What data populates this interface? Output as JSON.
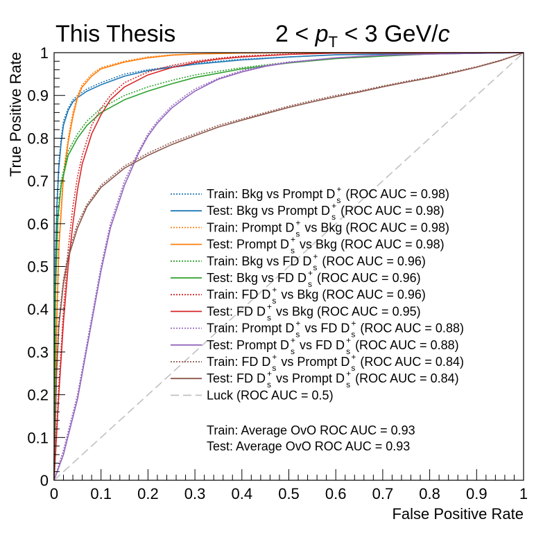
{
  "chart_data": {
    "type": "line",
    "header": {
      "left": "This Thesis",
      "right_prefix": "2 < ",
      "right_var": "p",
      "right_sub": "T",
      "right_mid": " < 3 GeV/",
      "right_unit": "c"
    },
    "xlabel": "False Positive Rate",
    "ylabel": "True Positive Rate",
    "xlim": [
      0,
      1
    ],
    "ylim": [
      0,
      1
    ],
    "xticks": [
      "0",
      "0.1",
      "0.2",
      "0.3",
      "0.4",
      "0.5",
      "0.6",
      "0.7",
      "0.8",
      "0.9",
      "1"
    ],
    "yticks": [
      "0",
      "0.1",
      "0.2",
      "0.3",
      "0.4",
      "0.5",
      "0.6",
      "0.7",
      "0.8",
      "0.9",
      "1"
    ],
    "grid": false,
    "legend_position": "center-right",
    "series": [
      {
        "name": "Train: Bkg vs Prompt D_s^+ (ROC AUC = 0.98)",
        "style": "dotted",
        "color": "#1f77b4",
        "x": [
          0,
          0.003,
          0.006,
          0.01,
          0.015,
          0.02,
          0.03,
          0.04,
          0.05,
          0.07,
          0.1,
          0.15,
          0.2,
          0.3,
          0.4,
          0.5,
          0.6,
          0.8,
          1.0
        ],
        "y": [
          0,
          0.52,
          0.65,
          0.74,
          0.8,
          0.84,
          0.87,
          0.89,
          0.9,
          0.915,
          0.93,
          0.95,
          0.96,
          0.975,
          0.985,
          0.99,
          0.995,
          0.998,
          1.0
        ]
      },
      {
        "name": "Test: Bkg vs Prompt D_s^+ (ROC AUC = 0.98)",
        "style": "solid",
        "color": "#1f77b4",
        "x": [
          0,
          0.003,
          0.006,
          0.01,
          0.015,
          0.02,
          0.03,
          0.04,
          0.05,
          0.07,
          0.1,
          0.15,
          0.2,
          0.3,
          0.4,
          0.5,
          0.6,
          0.8,
          1.0
        ],
        "y": [
          0,
          0.51,
          0.64,
          0.73,
          0.79,
          0.83,
          0.865,
          0.885,
          0.895,
          0.91,
          0.925,
          0.945,
          0.958,
          0.973,
          0.983,
          0.99,
          0.995,
          0.998,
          1.0
        ]
      },
      {
        "name": "Train: Prompt D_s^+ vs Bkg (ROC AUC = 0.98)",
        "style": "dotted",
        "color": "#ff7f0e",
        "x": [
          0,
          0.005,
          0.01,
          0.02,
          0.03,
          0.04,
          0.05,
          0.06,
          0.08,
          0.1,
          0.15,
          0.2,
          0.25,
          0.3,
          0.4,
          0.5,
          1.0
        ],
        "y": [
          0,
          0.35,
          0.55,
          0.72,
          0.8,
          0.86,
          0.9,
          0.925,
          0.95,
          0.965,
          0.98,
          0.99,
          0.995,
          0.997,
          0.999,
          1.0,
          1.0
        ]
      },
      {
        "name": "Test: Prompt D_s^+ vs Bkg (ROC AUC = 0.98)",
        "style": "solid",
        "color": "#ff7f0e",
        "x": [
          0,
          0.005,
          0.01,
          0.02,
          0.03,
          0.04,
          0.05,
          0.06,
          0.08,
          0.1,
          0.15,
          0.2,
          0.25,
          0.3,
          0.4,
          0.5,
          1.0
        ],
        "y": [
          0,
          0.34,
          0.54,
          0.71,
          0.79,
          0.85,
          0.895,
          0.92,
          0.945,
          0.962,
          0.978,
          0.988,
          0.994,
          0.997,
          0.999,
          1.0,
          1.0
        ]
      },
      {
        "name": "Train: Bkg vs FD D_s^+ (ROC AUC = 0.96)",
        "style": "dotted",
        "color": "#2ca02c",
        "x": [
          0,
          0.003,
          0.008,
          0.015,
          0.03,
          0.05,
          0.07,
          0.1,
          0.15,
          0.2,
          0.25,
          0.3,
          0.4,
          0.5,
          0.6,
          0.7,
          0.8,
          1.0
        ],
        "y": [
          0,
          0.45,
          0.62,
          0.7,
          0.77,
          0.81,
          0.84,
          0.87,
          0.9,
          0.92,
          0.935,
          0.948,
          0.965,
          0.978,
          0.987,
          0.993,
          0.997,
          1.0
        ]
      },
      {
        "name": "Test: Bkg vs FD D_s^+ (ROC AUC = 0.96)",
        "style": "solid",
        "color": "#2ca02c",
        "x": [
          0,
          0.003,
          0.008,
          0.015,
          0.03,
          0.05,
          0.07,
          0.1,
          0.15,
          0.2,
          0.25,
          0.3,
          0.4,
          0.5,
          0.6,
          0.7,
          0.8,
          1.0
        ],
        "y": [
          0,
          0.44,
          0.61,
          0.69,
          0.76,
          0.8,
          0.83,
          0.86,
          0.89,
          0.91,
          0.927,
          0.942,
          0.962,
          0.976,
          0.986,
          0.992,
          0.997,
          1.0
        ]
      },
      {
        "name": "Train: FD D_s^+ vs Bkg (ROC AUC = 0.96)",
        "style": "dotted",
        "color": "#d62728",
        "x": [
          0,
          0.01,
          0.02,
          0.03,
          0.04,
          0.05,
          0.06,
          0.08,
          0.1,
          0.12,
          0.15,
          0.2,
          0.25,
          0.3,
          0.35,
          0.4,
          0.5,
          0.6,
          1.0
        ],
        "y": [
          0,
          0.22,
          0.4,
          0.54,
          0.64,
          0.71,
          0.76,
          0.83,
          0.87,
          0.9,
          0.93,
          0.955,
          0.97,
          0.98,
          0.987,
          0.992,
          0.997,
          0.999,
          1.0
        ]
      },
      {
        "name": "Test: FD D_s^+ vs Bkg (ROC AUC = 0.95)",
        "style": "solid",
        "color": "#d62728",
        "x": [
          0,
          0.01,
          0.02,
          0.03,
          0.04,
          0.05,
          0.06,
          0.08,
          0.1,
          0.12,
          0.15,
          0.2,
          0.25,
          0.3,
          0.35,
          0.4,
          0.5,
          0.6,
          1.0
        ],
        "y": [
          0,
          0.2,
          0.37,
          0.5,
          0.6,
          0.68,
          0.74,
          0.81,
          0.855,
          0.89,
          0.92,
          0.948,
          0.965,
          0.977,
          0.985,
          0.99,
          0.996,
          0.999,
          1.0
        ]
      },
      {
        "name": "Train: Prompt D_s^+ vs FD D_s^+ (ROC AUC = 0.88)",
        "style": "dotted",
        "color": "#9467bd",
        "x": [
          0,
          0.02,
          0.05,
          0.08,
          0.1,
          0.12,
          0.15,
          0.18,
          0.2,
          0.22,
          0.25,
          0.28,
          0.3,
          0.33,
          0.35,
          0.4,
          0.45,
          0.5,
          0.6,
          0.7,
          0.8,
          1.0
        ],
        "y": [
          0,
          0.07,
          0.2,
          0.38,
          0.5,
          0.6,
          0.7,
          0.77,
          0.81,
          0.84,
          0.875,
          0.9,
          0.915,
          0.93,
          0.94,
          0.958,
          0.97,
          0.978,
          0.988,
          0.994,
          0.997,
          1.0
        ]
      },
      {
        "name": "Test: Prompt D_s^+ vs FD D_s^+ (ROC AUC = 0.88)",
        "style": "solid",
        "color": "#9467bd",
        "x": [
          0,
          0.02,
          0.05,
          0.08,
          0.1,
          0.12,
          0.15,
          0.18,
          0.2,
          0.22,
          0.25,
          0.28,
          0.3,
          0.33,
          0.35,
          0.4,
          0.45,
          0.5,
          0.6,
          0.7,
          0.8,
          1.0
        ],
        "y": [
          0,
          0.06,
          0.19,
          0.37,
          0.49,
          0.59,
          0.69,
          0.765,
          0.805,
          0.835,
          0.87,
          0.895,
          0.91,
          0.927,
          0.938,
          0.955,
          0.968,
          0.977,
          0.988,
          0.994,
          0.997,
          1.0
        ]
      },
      {
        "name": "Train: FD D_s^+ vs Prompt D_s^+ (ROC AUC = 0.84)",
        "style": "dotted",
        "color": "#8c564b",
        "x": [
          0,
          0.005,
          0.01,
          0.02,
          0.03,
          0.05,
          0.07,
          0.1,
          0.15,
          0.2,
          0.25,
          0.3,
          0.35,
          0.4,
          0.45,
          0.5,
          0.55,
          0.6,
          0.65,
          0.7,
          0.75,
          0.8,
          0.85,
          0.9,
          0.95,
          1.0
        ],
        "y": [
          0,
          0.25,
          0.37,
          0.47,
          0.53,
          0.6,
          0.645,
          0.69,
          0.735,
          0.765,
          0.79,
          0.81,
          0.83,
          0.845,
          0.86,
          0.875,
          0.888,
          0.9,
          0.91,
          0.922,
          0.933,
          0.943,
          0.955,
          0.967,
          0.982,
          1.0
        ]
      },
      {
        "name": "Test: FD D_s^+ vs Prompt D_s^+ (ROC AUC = 0.84)",
        "style": "solid",
        "color": "#8c564b",
        "x": [
          0,
          0.005,
          0.01,
          0.02,
          0.03,
          0.05,
          0.07,
          0.1,
          0.15,
          0.2,
          0.25,
          0.3,
          0.35,
          0.4,
          0.45,
          0.5,
          0.55,
          0.6,
          0.65,
          0.7,
          0.75,
          0.8,
          0.85,
          0.9,
          0.95,
          1.0
        ],
        "y": [
          0,
          0.24,
          0.36,
          0.46,
          0.52,
          0.59,
          0.64,
          0.685,
          0.73,
          0.76,
          0.785,
          0.806,
          0.826,
          0.842,
          0.857,
          0.872,
          0.885,
          0.897,
          0.908,
          0.92,
          0.931,
          0.941,
          0.953,
          0.966,
          0.981,
          1.0
        ]
      },
      {
        "name": "Luck (ROC AUC = 0.5)",
        "style": "dashed",
        "color": "#c0c0c0",
        "x": [
          0,
          1
        ],
        "y": [
          0,
          1
        ]
      }
    ],
    "legend_rows": [
      {
        "pre": "Train: Bkg vs Prompt D",
        "mid": "",
        "post": " (ROC AUC = 0.98)",
        "mesons": 1
      },
      {
        "pre": "Test: Bkg vs Prompt D",
        "mid": "",
        "post": " (ROC AUC = 0.98)",
        "mesons": 1
      },
      {
        "pre": "Train: Prompt D",
        "mid": "",
        "post": " vs Bkg (ROC AUC = 0.98)",
        "mesons": 1
      },
      {
        "pre": "Test: Prompt D",
        "mid": "",
        "post": " vs Bkg (ROC AUC = 0.98)",
        "mesons": 1
      },
      {
        "pre": "Train: Bkg vs FD D",
        "mid": "",
        "post": " (ROC AUC = 0.96)",
        "mesons": 1
      },
      {
        "pre": "Test: Bkg vs FD D",
        "mid": "",
        "post": " (ROC AUC = 0.96)",
        "mesons": 1
      },
      {
        "pre": "Train: FD D",
        "mid": "",
        "post": " vs Bkg (ROC AUC = 0.96)",
        "mesons": 1
      },
      {
        "pre": "Test: FD D",
        "mid": "",
        "post": " vs Bkg (ROC AUC = 0.95)",
        "mesons": 1
      },
      {
        "pre": "Train: Prompt D",
        "mid": " vs FD D",
        "post": " (ROC AUC = 0.88)",
        "mesons": 2
      },
      {
        "pre": "Test: Prompt D",
        "mid": " vs FD D",
        "post": " (ROC AUC = 0.88)",
        "mesons": 2
      },
      {
        "pre": "Train: FD D",
        "mid": " vs Prompt D",
        "post": " (ROC AUC = 0.84)",
        "mesons": 2
      },
      {
        "pre": "Test: FD D",
        "mid": " vs Prompt D",
        "post": " (ROC AUC = 0.84)",
        "mesons": 2
      },
      {
        "pre": "Luck (ROC AUC = 0.5)",
        "mid": "",
        "post": "",
        "mesons": 0
      }
    ],
    "meson_sup": "+",
    "meson_sub": "s",
    "annotations": [
      "Train: Average OvO ROC AUC = 0.93",
      "Test: Average OvO ROC AUC = 0.93"
    ]
  }
}
